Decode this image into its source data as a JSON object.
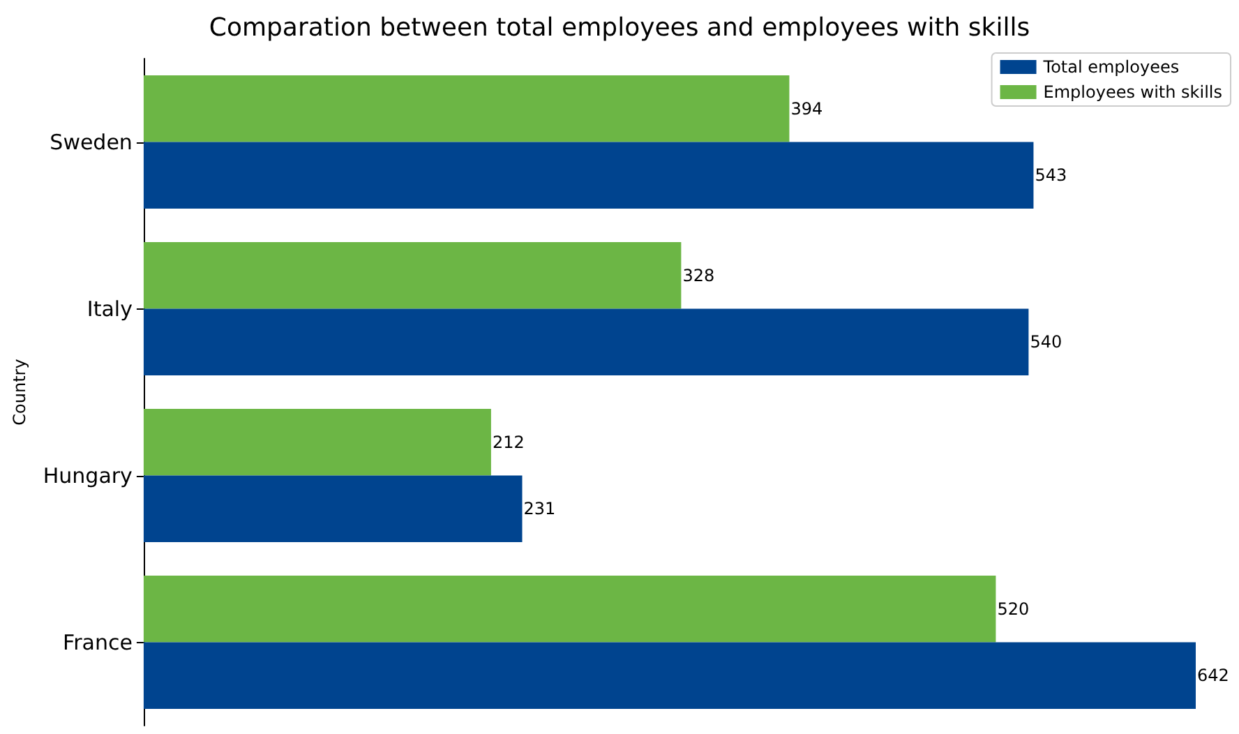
{
  "chart_data": {
    "type": "bar",
    "orientation": "horizontal",
    "title": "Comparation between total employees and employees with skills",
    "ylabel": "Country",
    "categories": [
      "Sweden",
      "Italy",
      "Hungary",
      "France"
    ],
    "series": [
      {
        "name": "Total employees",
        "color": "#00448f",
        "values": [
          543,
          540,
          231,
          642
        ]
      },
      {
        "name": "Employees with skills",
        "color": "#6cb645",
        "values": [
          394,
          328,
          212,
          520
        ]
      }
    ],
    "tick_labels": "y",
    "data_labels": true,
    "legend": "top right",
    "grid": false
  }
}
